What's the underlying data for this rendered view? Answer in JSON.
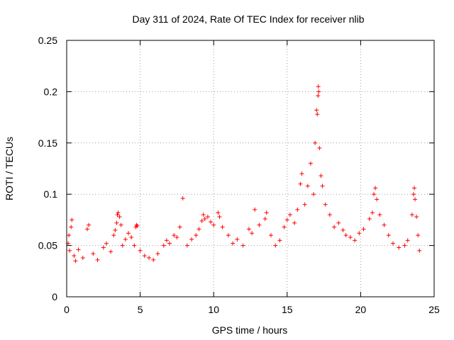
{
  "chart_data": {
    "type": "scatter",
    "title": "Day 311 of 2024, Rate Of TEC Index for receiver nlib",
    "xlabel": "GPS time / hours",
    "ylabel": "ROTI / TECUs",
    "xlim": [
      0,
      25
    ],
    "ylim": [
      0,
      0.25
    ],
    "x_ticks": [
      0,
      5,
      10,
      15,
      20,
      25
    ],
    "x_tick_labels": [
      "0",
      "5",
      "10",
      "15",
      "20",
      "25"
    ],
    "y_ticks": [
      0,
      0.05,
      0.1,
      0.15,
      0.2,
      0.25
    ],
    "y_tick_labels": [
      "0",
      "0.05",
      "0.1",
      "0.15",
      "0.2",
      "0.25"
    ],
    "grid": true,
    "marker": "+",
    "color": "#ff0000",
    "series": [
      {
        "name": "ROTI",
        "points": [
          [
            0.1,
            0.052
          ],
          [
            0.15,
            0.06
          ],
          [
            0.2,
            0.045
          ],
          [
            0.3,
            0.068
          ],
          [
            0.35,
            0.075
          ],
          [
            0.5,
            0.04
          ],
          [
            0.6,
            0.035
          ],
          [
            0.8,
            0.046
          ],
          [
            1.1,
            0.038
          ],
          [
            1.4,
            0.066
          ],
          [
            1.5,
            0.07
          ],
          [
            1.8,
            0.042
          ],
          [
            2.1,
            0.036
          ],
          [
            2.5,
            0.048
          ],
          [
            2.7,
            0.052
          ],
          [
            3.0,
            0.044
          ],
          [
            3.2,
            0.06
          ],
          [
            3.3,
            0.065
          ],
          [
            3.4,
            0.072
          ],
          [
            3.45,
            0.08
          ],
          [
            3.5,
            0.082
          ],
          [
            3.6,
            0.078
          ],
          [
            3.7,
            0.07
          ],
          [
            3.8,
            0.05
          ],
          [
            4.0,
            0.056
          ],
          [
            4.2,
            0.062
          ],
          [
            4.4,
            0.058
          ],
          [
            4.6,
            0.05
          ],
          [
            4.7,
            0.068
          ],
          [
            4.75,
            0.07
          ],
          [
            4.8,
            0.069
          ],
          [
            5.0,
            0.045
          ],
          [
            5.3,
            0.04
          ],
          [
            5.6,
            0.038
          ],
          [
            5.9,
            0.036
          ],
          [
            6.2,
            0.042
          ],
          [
            6.6,
            0.05
          ],
          [
            6.8,
            0.055
          ],
          [
            7.0,
            0.052
          ],
          [
            7.3,
            0.06
          ],
          [
            7.5,
            0.058
          ],
          [
            7.7,
            0.068
          ],
          [
            7.9,
            0.096
          ],
          [
            8.2,
            0.05
          ],
          [
            8.5,
            0.056
          ],
          [
            8.8,
            0.06
          ],
          [
            9.0,
            0.066
          ],
          [
            9.2,
            0.074
          ],
          [
            9.3,
            0.08
          ],
          [
            9.4,
            0.076
          ],
          [
            9.6,
            0.078
          ],
          [
            9.8,
            0.073
          ],
          [
            10.0,
            0.07
          ],
          [
            10.3,
            0.082
          ],
          [
            10.4,
            0.078
          ],
          [
            10.6,
            0.068
          ],
          [
            11.0,
            0.06
          ],
          [
            11.3,
            0.052
          ],
          [
            11.6,
            0.056
          ],
          [
            12.0,
            0.05
          ],
          [
            12.4,
            0.066
          ],
          [
            12.6,
            0.062
          ],
          [
            12.8,
            0.085
          ],
          [
            13.1,
            0.07
          ],
          [
            13.5,
            0.076
          ],
          [
            13.6,
            0.082
          ],
          [
            13.9,
            0.06
          ],
          [
            14.2,
            0.05
          ],
          [
            14.5,
            0.055
          ],
          [
            14.8,
            0.068
          ],
          [
            15.0,
            0.075
          ],
          [
            15.2,
            0.08
          ],
          [
            15.5,
            0.072
          ],
          [
            15.7,
            0.085
          ],
          [
            15.9,
            0.11
          ],
          [
            16.0,
            0.12
          ],
          [
            16.2,
            0.09
          ],
          [
            16.4,
            0.108
          ],
          [
            16.6,
            0.13
          ],
          [
            16.8,
            0.1
          ],
          [
            16.9,
            0.15
          ],
          [
            17.0,
            0.182
          ],
          [
            17.05,
            0.178
          ],
          [
            17.1,
            0.196
          ],
          [
            17.12,
            0.205
          ],
          [
            17.15,
            0.2
          ],
          [
            17.2,
            0.145
          ],
          [
            17.3,
            0.118
          ],
          [
            17.4,
            0.108
          ],
          [
            17.6,
            0.09
          ],
          [
            17.9,
            0.08
          ],
          [
            18.2,
            0.068
          ],
          [
            18.5,
            0.072
          ],
          [
            18.8,
            0.065
          ],
          [
            19.0,
            0.06
          ],
          [
            19.3,
            0.058
          ],
          [
            19.6,
            0.055
          ],
          [
            19.9,
            0.062
          ],
          [
            20.2,
            0.066
          ],
          [
            20.6,
            0.076
          ],
          [
            20.8,
            0.082
          ],
          [
            20.9,
            0.1
          ],
          [
            21.0,
            0.106
          ],
          [
            21.1,
            0.095
          ],
          [
            21.3,
            0.08
          ],
          [
            21.6,
            0.07
          ],
          [
            21.9,
            0.06
          ],
          [
            22.2,
            0.052
          ],
          [
            22.6,
            0.048
          ],
          [
            23.0,
            0.05
          ],
          [
            23.2,
            0.055
          ],
          [
            23.5,
            0.08
          ],
          [
            23.6,
            0.1
          ],
          [
            23.65,
            0.106
          ],
          [
            23.7,
            0.095
          ],
          [
            23.8,
            0.078
          ],
          [
            23.9,
            0.06
          ],
          [
            24.0,
            0.045
          ]
        ]
      }
    ]
  }
}
